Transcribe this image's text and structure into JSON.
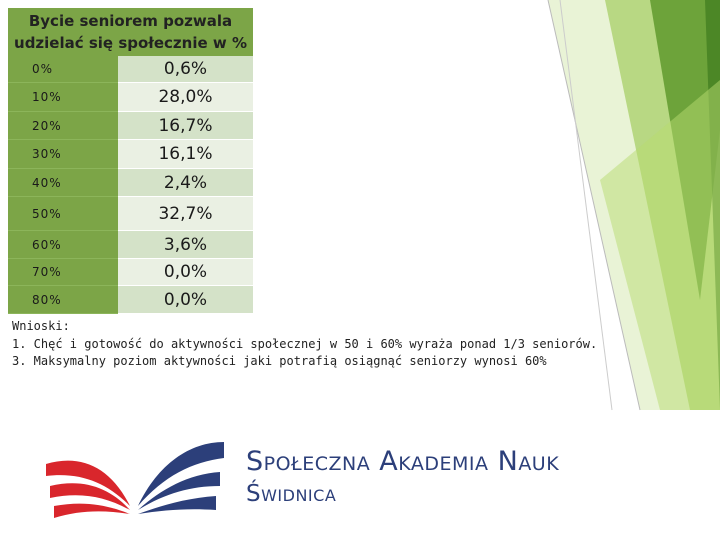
{
  "table": {
    "title_line1": "Bycie seniorem pozwala",
    "title_line2": "udzielać się społecznie w %",
    "rows": [
      {
        "level": "0%",
        "value": "0,6%"
      },
      {
        "level": "10%",
        "value": "28,0%"
      },
      {
        "level": "20%",
        "value": "16,7%"
      },
      {
        "level": "30%",
        "value": "16,1%"
      },
      {
        "level": "40%",
        "value": "2,4%"
      },
      {
        "level": "50%",
        "value": "32,7%"
      },
      {
        "level": "60%",
        "value": "3,6%"
      },
      {
        "level": "70%",
        "value": "0,0%"
      },
      {
        "level": "80%",
        "value": "0,0%"
      }
    ]
  },
  "notes": {
    "heading": "Wnioski:",
    "line1": "1. Chęć i gotowość do aktywności społecznej w 50 i 60% wyraża ponad 1/3 seniorów.",
    "line2": "3. Maksymalny poziom aktywności jaki potrafią osiągnąć seniorzy wynosi 60%"
  },
  "logo": {
    "title": "Społeczna Akademia Nauk",
    "subtitle": "Świdnica"
  },
  "colors": {
    "accent_green": "#7ca547",
    "logo_blue": "#2c3f7a",
    "logo_red": "#d9262c"
  }
}
